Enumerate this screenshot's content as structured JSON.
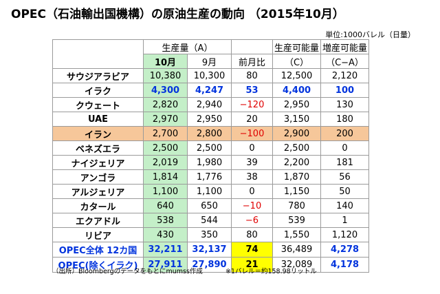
{
  "title": "OPEC（石油輸出国機構）の原油生産の動向 （2015年10月）",
  "unit": "単位:1000バレル（日量）",
  "headers": {
    "production": "生産量（A）",
    "oct": "10月",
    "sep": "9月",
    "mom": "前月比",
    "capacity": "生産可能量",
    "capacity_sub": "（C）",
    "spare": "増産可能量",
    "spare_sub": "（C−A）"
  },
  "rows": [
    {
      "name": "サウジアラビア",
      "oct": "10,380",
      "sep": "10,300",
      "mom": "80",
      "cap": "12,500",
      "spare": "2,120"
    },
    {
      "name": "イラク",
      "oct": "4,300",
      "sep": "4,247",
      "mom": "53",
      "cap": "4,400",
      "spare": "100"
    },
    {
      "name": "クウェート",
      "oct": "2,820",
      "sep": "2,940",
      "mom": "−120",
      "cap": "2,950",
      "spare": "130"
    },
    {
      "name": "UAE",
      "oct": "2,970",
      "sep": "2,950",
      "mom": "20",
      "cap": "3,150",
      "spare": "180"
    },
    {
      "name": "イラン",
      "oct": "2,700",
      "sep": "2,800",
      "mom": "−100",
      "cap": "2,900",
      "spare": "200"
    },
    {
      "name": "ベネズエラ",
      "oct": "2,500",
      "sep": "2,500",
      "mom": "0",
      "cap": "2,500",
      "spare": "0"
    },
    {
      "name": "ナイジェリア",
      "oct": "2,019",
      "sep": "1,980",
      "mom": "39",
      "cap": "2,200",
      "spare": "181"
    },
    {
      "name": "アンゴラ",
      "oct": "1,814",
      "sep": "1,776",
      "mom": "38",
      "cap": "1,870",
      "spare": "56"
    },
    {
      "name": "アルジェリア",
      "oct": "1,100",
      "sep": "1,100",
      "mom": "0",
      "cap": "1,150",
      "spare": "50"
    },
    {
      "name": "カタール",
      "oct": "640",
      "sep": "650",
      "mom": "−10",
      "cap": "780",
      "spare": "140"
    },
    {
      "name": "エクアドル",
      "oct": "538",
      "sep": "544",
      "mom": "−6",
      "cap": "539",
      "spare": "1"
    },
    {
      "name": "リビア",
      "oct": "430",
      "sep": "350",
      "mom": "80",
      "cap": "1,550",
      "spare": "1,120"
    }
  ],
  "totals": [
    {
      "name": "OPEC全体 12カ国",
      "oct": "32,211",
      "sep": "32,137",
      "mom": "74",
      "cap": "36,489",
      "spare": "4,278"
    },
    {
      "name": "OPEC(除くイラク)",
      "oct": "27,911",
      "sep": "27,890",
      "mom": "21",
      "cap": "32,089",
      "spare": "4,178"
    }
  ],
  "footer": {
    "source": "（出所）Bloombergのデータをもとにmumss作成",
    "note": "※1バレル＝約158.98リットル"
  }
}
